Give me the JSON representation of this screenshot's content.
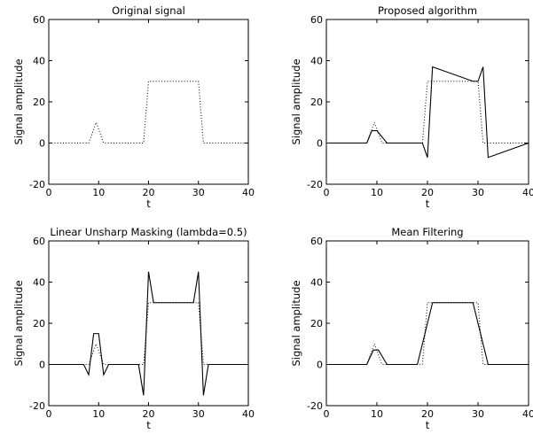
{
  "chart_data": [
    {
      "type": "line",
      "title": "Original signal",
      "xlabel": "t",
      "ylabel": "Signal amplitude",
      "xlim": [
        0,
        40
      ],
      "ylim": [
        -20,
        60
      ],
      "xticks": [
        0,
        10,
        20,
        30,
        40
      ],
      "yticks": [
        -20,
        0,
        20,
        40,
        60
      ],
      "series": [
        {
          "style": "dotted",
          "x": [
            0,
            8,
            9.5,
            11,
            19,
            20,
            30,
            31,
            40
          ],
          "y": [
            0,
            0,
            10,
            0,
            0,
            30,
            30,
            0,
            0
          ]
        }
      ]
    },
    {
      "type": "line",
      "title": "Proposed algorithm",
      "xlabel": "t",
      "ylabel": "Signal amplitude",
      "xlim": [
        0,
        40
      ],
      "ylim": [
        -20,
        60
      ],
      "xticks": [
        0,
        10,
        20,
        30,
        40
      ],
      "yticks": [
        -20,
        0,
        20,
        40,
        60
      ],
      "series": [
        {
          "style": "dotted",
          "x": [
            0,
            8,
            9.5,
            11,
            19,
            20,
            30,
            31,
            40
          ],
          "y": [
            0,
            0,
            10,
            0,
            0,
            30,
            30,
            0,
            0
          ]
        },
        {
          "style": "solid",
          "x": [
            0,
            8,
            9,
            10,
            12,
            19,
            20,
            21,
            29,
            30,
            31,
            32,
            40
          ],
          "y": [
            0,
            0,
            6,
            6,
            0,
            0,
            -7,
            37,
            30,
            30,
            37,
            -7,
            0
          ]
        }
      ]
    },
    {
      "type": "line",
      "title": "Linear Unsharp Masking (lambda=0.5)",
      "xlabel": "t",
      "ylabel": "Signal amplitude",
      "xlim": [
        0,
        40
      ],
      "ylim": [
        -20,
        60
      ],
      "xticks": [
        0,
        10,
        20,
        30,
        40
      ],
      "yticks": [
        -20,
        0,
        20,
        40,
        60
      ],
      "series": [
        {
          "style": "dotted",
          "x": [
            0,
            8,
            9.5,
            11,
            19,
            20,
            30,
            31,
            40
          ],
          "y": [
            0,
            0,
            10,
            0,
            0,
            30,
            30,
            0,
            0
          ]
        },
        {
          "style": "solid",
          "x": [
            0,
            7,
            8,
            9,
            10,
            11,
            12,
            18,
            19,
            20,
            21,
            29,
            30,
            31,
            32,
            40
          ],
          "y": [
            0,
            0,
            -5,
            15,
            15,
            -5,
            0,
            0,
            -15,
            45,
            30,
            30,
            45,
            -15,
            0,
            0
          ]
        }
      ]
    },
    {
      "type": "line",
      "title": "Mean Filtering",
      "xlabel": "t",
      "ylabel": "Signal amplitude",
      "xlim": [
        0,
        40
      ],
      "ylim": [
        -20,
        60
      ],
      "xticks": [
        0,
        10,
        20,
        30,
        40
      ],
      "yticks": [
        -20,
        0,
        20,
        40,
        60
      ],
      "series": [
        {
          "style": "dotted",
          "x": [
            0,
            8,
            9.5,
            11,
            19,
            20,
            30,
            31,
            40
          ],
          "y": [
            0,
            0,
            10,
            0,
            0,
            30,
            30,
            0,
            0
          ]
        },
        {
          "style": "solid",
          "x": [
            0,
            8,
            9.3,
            10.3,
            12,
            18,
            21,
            29,
            32,
            40
          ],
          "y": [
            0,
            0,
            7,
            7,
            0,
            0,
            30,
            30,
            0,
            0
          ]
        }
      ]
    }
  ]
}
